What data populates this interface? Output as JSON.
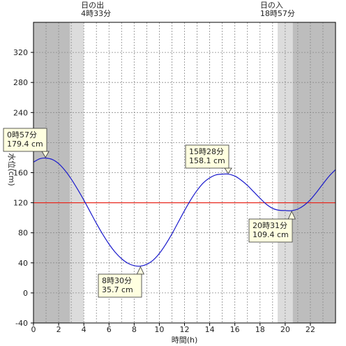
{
  "chart_data": {
    "type": "line",
    "xlabel": "時間(h)",
    "ylabel": "水位(cm)",
    "xlim": [
      0,
      24
    ],
    "ylim": [
      -40,
      360
    ],
    "x_ticks": [
      0,
      2,
      4,
      6,
      8,
      10,
      12,
      14,
      16,
      18,
      20,
      22
    ],
    "y_ticks": [
      -40,
      0,
      40,
      80,
      120,
      160,
      200,
      240,
      280,
      320
    ],
    "grid": true,
    "reference_line": {
      "value": 120,
      "color": "#e8281e"
    },
    "line_color": "#1a1acc",
    "sunrise": {
      "label": "日の出",
      "time_label": "4時33分",
      "hour": 4.55
    },
    "sunset": {
      "label": "日の入",
      "time_label": "18時57分",
      "hour": 18.95
    },
    "shading": {
      "night_color": "#bdbdbd",
      "twilight_color": "#dcdcdc",
      "day_color": "#ffffff",
      "bands": [
        {
          "from": 0,
          "to": 2.9,
          "kind": "night"
        },
        {
          "from": 2.9,
          "to": 4.0,
          "kind": "twilight"
        },
        {
          "from": 4.0,
          "to": 19.4,
          "kind": "day"
        },
        {
          "from": 19.4,
          "to": 20.6,
          "kind": "twilight"
        },
        {
          "from": 20.6,
          "to": 24,
          "kind": "night"
        }
      ]
    },
    "extremes": [
      {
        "time": "0時57分",
        "level": "179.4 cm",
        "hour": 0.95,
        "value": 179.4
      },
      {
        "time": "8時30分",
        "level": "35.7 cm",
        "hour": 8.5,
        "value": 35.7
      },
      {
        "time": "15時28分",
        "level": "158.1 cm",
        "hour": 15.47,
        "value": 158.1
      },
      {
        "time": "20時31分",
        "level": "109.4 cm",
        "hour": 20.52,
        "value": 109.4
      }
    ],
    "series": [
      {
        "x": [
          0,
          0.5,
          0.95,
          1.5,
          2,
          2.5,
          3,
          3.5,
          4,
          4.5,
          5,
          5.5,
          6,
          6.5,
          7,
          7.5,
          8,
          8.5,
          9,
          9.5,
          10,
          10.5,
          11,
          11.5,
          12,
          12.5,
          13,
          13.5,
          14,
          14.5,
          15,
          15.47,
          16,
          16.5,
          17,
          17.5,
          18,
          18.5,
          19,
          19.5,
          20,
          20.52,
          21,
          21.5,
          22,
          22.5,
          23,
          23.5,
          24
        ],
        "y": [
          174,
          178.5,
          179.4,
          177.5,
          172,
          163,
          151.5,
          138,
          123.5,
          108,
          92.5,
          78,
          65,
          54,
          45.5,
          39.5,
          36.3,
          35.7,
          38,
          43.5,
          52.5,
          64.5,
          78.5,
          94,
          109.5,
          124,
          136.5,
          146.5,
          153,
          157,
          158,
          158.1,
          155.5,
          150,
          143,
          134.5,
          126,
          118,
          112.5,
          110,
          109.6,
          109.4,
          111.5,
          116.5,
          124,
          134,
          145,
          155.5,
          164
        ]
      }
    ]
  }
}
